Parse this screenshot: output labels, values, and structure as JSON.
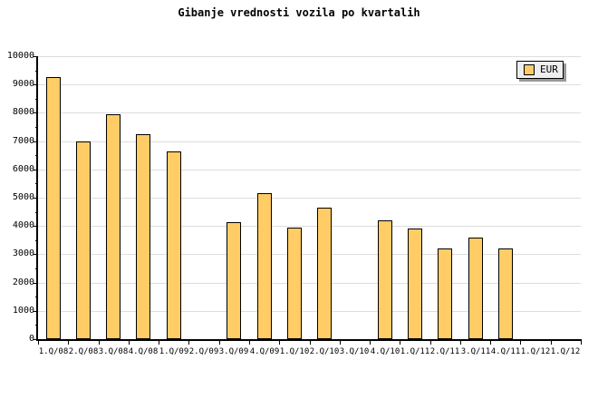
{
  "title": "Gibanje vrednosti vozila po kvartalih",
  "legend": {
    "label": "EUR"
  },
  "colors": {
    "background": "#FFFFFF",
    "bar_fill": "#FFCC66",
    "bar_border": "#000000",
    "grid": "#DDDDDD",
    "axis": "#000000",
    "text": "#000000",
    "legend_bg": "#EEEEEE",
    "legend_shadow": "#999999"
  },
  "chart_data": {
    "type": "bar",
    "title": "Gibanje vrednosti vozila po kvartalih",
    "xlabel": "",
    "ylabel": "",
    "categories": [
      "1.Q/08",
      "2.Q/08",
      "3.Q/08",
      "4.Q/08",
      "1.Q/09",
      "2.Q/09",
      "3.Q/09",
      "4.Q/09",
      "1.Q/10",
      "2.Q/10",
      "3.Q/10",
      "4.Q/10",
      "1.Q/11",
      "2.Q/11",
      "3.Q/11",
      "4.Q/11",
      "1.Q/12",
      "1.Q/12"
    ],
    "series": [
      {
        "name": "EUR",
        "values": [
          9250,
          7000,
          7950,
          7250,
          6650,
          null,
          4150,
          5150,
          3950,
          4650,
          null,
          4200,
          3900,
          3200,
          3600,
          3200,
          null,
          null
        ]
      }
    ],
    "ylim": [
      0,
      10000
    ],
    "y_ticks": [
      0,
      1000,
      2000,
      3000,
      4000,
      5000,
      6000,
      7000,
      8000,
      9000,
      10000
    ],
    "y_minor_tick_step": 500,
    "grid": "horizontal-major",
    "legend_position": "top-right"
  }
}
